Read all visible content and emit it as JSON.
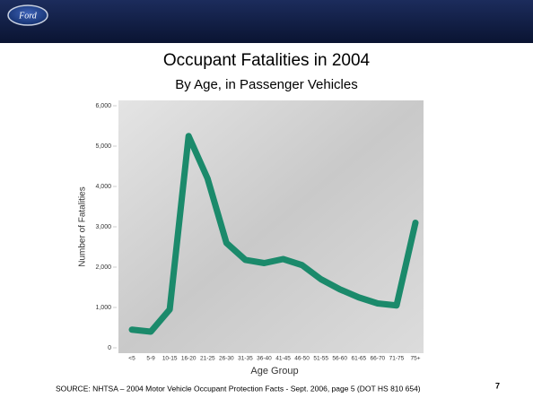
{
  "logo": "Ford",
  "chart_data": {
    "type": "line",
    "title": "Occupant Fatalities in 2004",
    "subtitle": "By Age, in Passenger Vehicles",
    "x_label": "Age Group",
    "y_label": "Number of Fatalities",
    "categories": [
      "<5",
      "5-9",
      "10-15",
      "16-20",
      "21-25",
      "26-30",
      "31-35",
      "36-40",
      "41-45",
      "46-50",
      "51-55",
      "56-60",
      "61-65",
      "66-70",
      "71-75",
      "75+"
    ],
    "values": [
      450,
      400,
      950,
      5250,
      4200,
      2600,
      2180,
      2100,
      2200,
      2050,
      1700,
      1450,
      1250,
      1100,
      1050,
      3100
    ],
    "color": "#1b8a6b",
    "ylim": [
      0,
      6000
    ],
    "yticks": [
      0,
      {
        "value": 1000,
        "label": "1,000"
      },
      {
        "value": 2000,
        "label": "2,000"
      },
      {
        "value": 3000,
        "label": "3,000"
      },
      {
        "value": 4000,
        "label": "4,000"
      },
      {
        "value": 5000,
        "label": "5,000"
      },
      {
        "value": 6000,
        "label": "6,000"
      }
    ]
  },
  "source": "SOURCE: NHTSA – 2004 Motor Vehicle Occupant Protection Facts - Sept. 2006, page 5 (DOT HS 810 654)",
  "page_number": "7"
}
